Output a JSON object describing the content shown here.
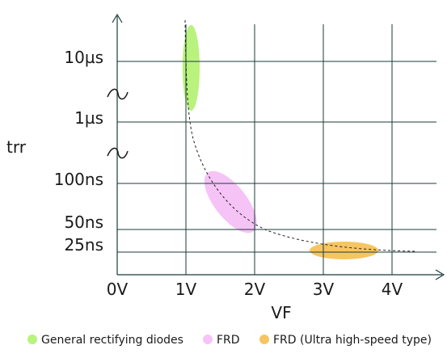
{
  "chart_data": {
    "type": "scatter",
    "xlabel": "VF",
    "ylabel": "trr",
    "x_ticks": [
      "0V",
      "1V",
      "2V",
      "3V",
      "4V"
    ],
    "y_ticks": [
      "10µs",
      "1µs",
      "100ns",
      "50ns",
      "25ns"
    ],
    "xlim": [
      0,
      4.9
    ],
    "axis_breaks": [
      "between 10µs and 1µs",
      "between 1µs and 100ns"
    ],
    "grid": true,
    "regions": [
      {
        "name": "General rectifying diodes",
        "color": "#b9f27c",
        "vf": [
          0.95,
          1.2
        ],
        "trr": [
          "about 1µs",
          "above 10µs"
        ]
      },
      {
        "name": "FRD",
        "color": "#f6c3f6",
        "vf": [
          1.3,
          2.0
        ],
        "trr": [
          "about 50ns",
          "about 100ns"
        ]
      },
      {
        "name": "FRD (Ultra high-speed type)",
        "color": "#f6c560",
        "vf": [
          2.8,
          3.8
        ],
        "trr": [
          "about 25ns",
          "about 25ns"
        ]
      }
    ],
    "trend": {
      "style": "dashed",
      "vf": [
        1.0,
        4.35
      ]
    },
    "legend_position": "bottom"
  }
}
